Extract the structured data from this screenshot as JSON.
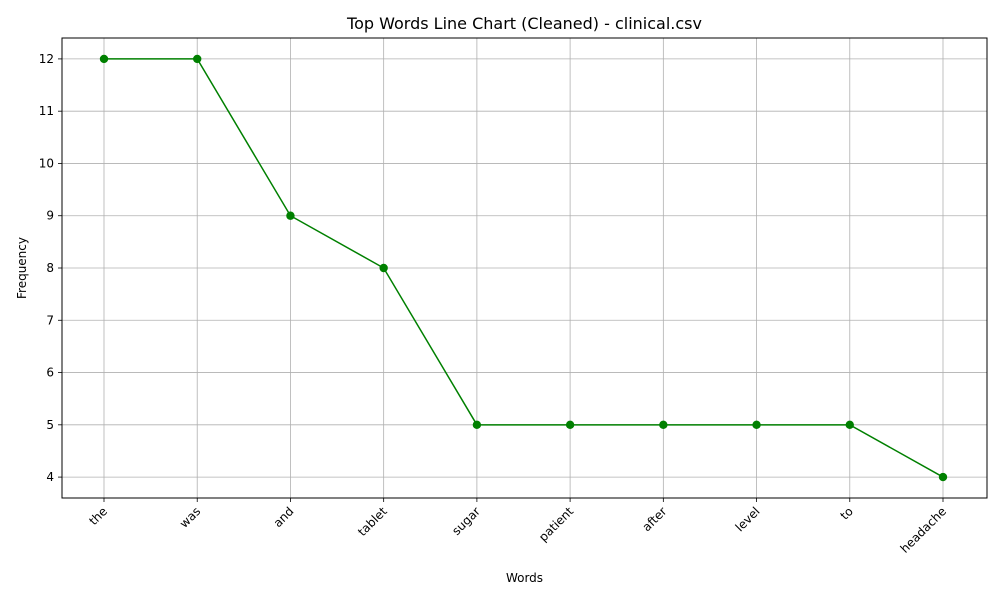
{
  "chart_data": {
    "type": "line",
    "title": "Top Words Line Chart (Cleaned) - clinical.csv",
    "xlabel": "Words",
    "ylabel": "Frequency",
    "categories": [
      "the",
      "was",
      "and",
      "tablet",
      "sugar",
      "patient",
      "after",
      "level",
      "to",
      "headache"
    ],
    "values": [
      12,
      12,
      9,
      8,
      5,
      5,
      5,
      5,
      5,
      4
    ],
    "ylim": [
      3.6,
      12.4
    ],
    "yticks": [
      4,
      5,
      6,
      7,
      8,
      9,
      10,
      11,
      12
    ],
    "grid": true,
    "line_color": "#008000",
    "marker": "circle",
    "tick_label_rotation_deg": 45
  }
}
